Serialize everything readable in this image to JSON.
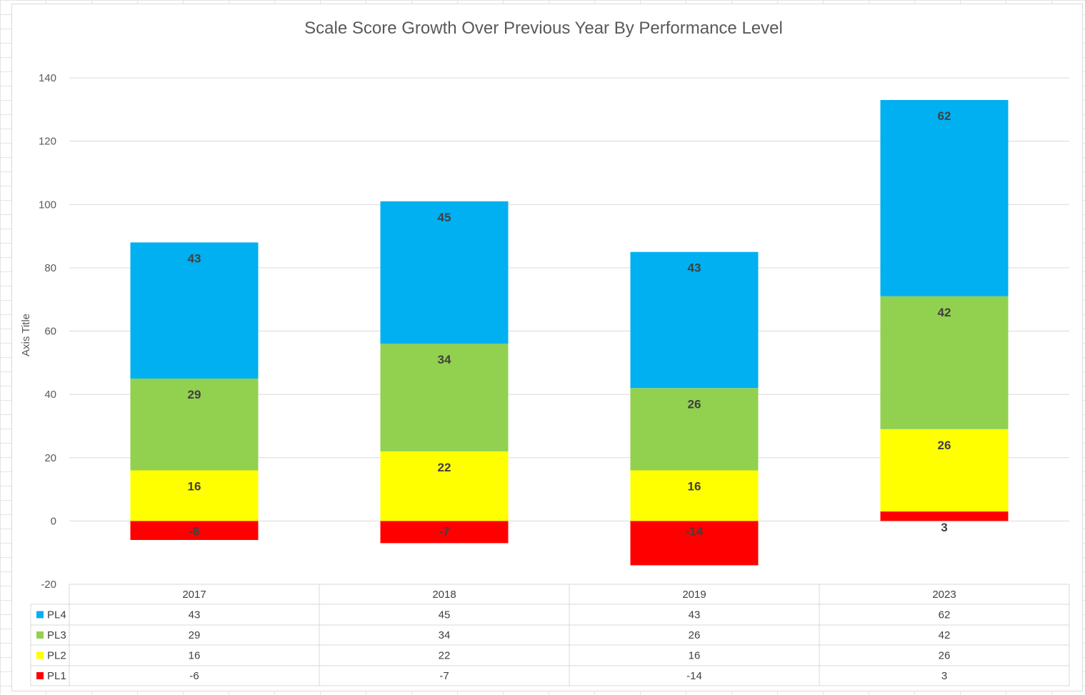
{
  "chart_data": {
    "type": "bar",
    "stacked": true,
    "title": "Scale Score  Growth Over Previous Year By Performance Level",
    "ylabel": "Axis Title",
    "xlabel": "",
    "ylim": [
      -20,
      140
    ],
    "yticks": [
      -20,
      0,
      20,
      40,
      60,
      80,
      100,
      120,
      140
    ],
    "grid": true,
    "legend": "data-table-left",
    "categories": [
      "2017",
      "2018",
      "2019",
      "2023"
    ],
    "series": [
      {
        "name": "PL1",
        "color": "#ff0000",
        "values": [
          -6,
          -7,
          -14,
          3
        ],
        "labels": [
          "-6",
          "-7",
          "-14",
          "3"
        ]
      },
      {
        "name": "PL2",
        "color": "#ffff00",
        "values": [
          16,
          22,
          16,
          26
        ],
        "labels": [
          "16",
          "22",
          "16",
          "26"
        ]
      },
      {
        "name": "PL3",
        "color": "#92d050",
        "values": [
          29,
          34,
          26,
          42
        ],
        "labels": [
          "29",
          "34",
          "26",
          "42"
        ]
      },
      {
        "name": "PL4",
        "color": "#00b0f0",
        "values": [
          43,
          45,
          43,
          62
        ],
        "labels": [
          "43",
          "45",
          "43",
          "62"
        ]
      }
    ]
  }
}
